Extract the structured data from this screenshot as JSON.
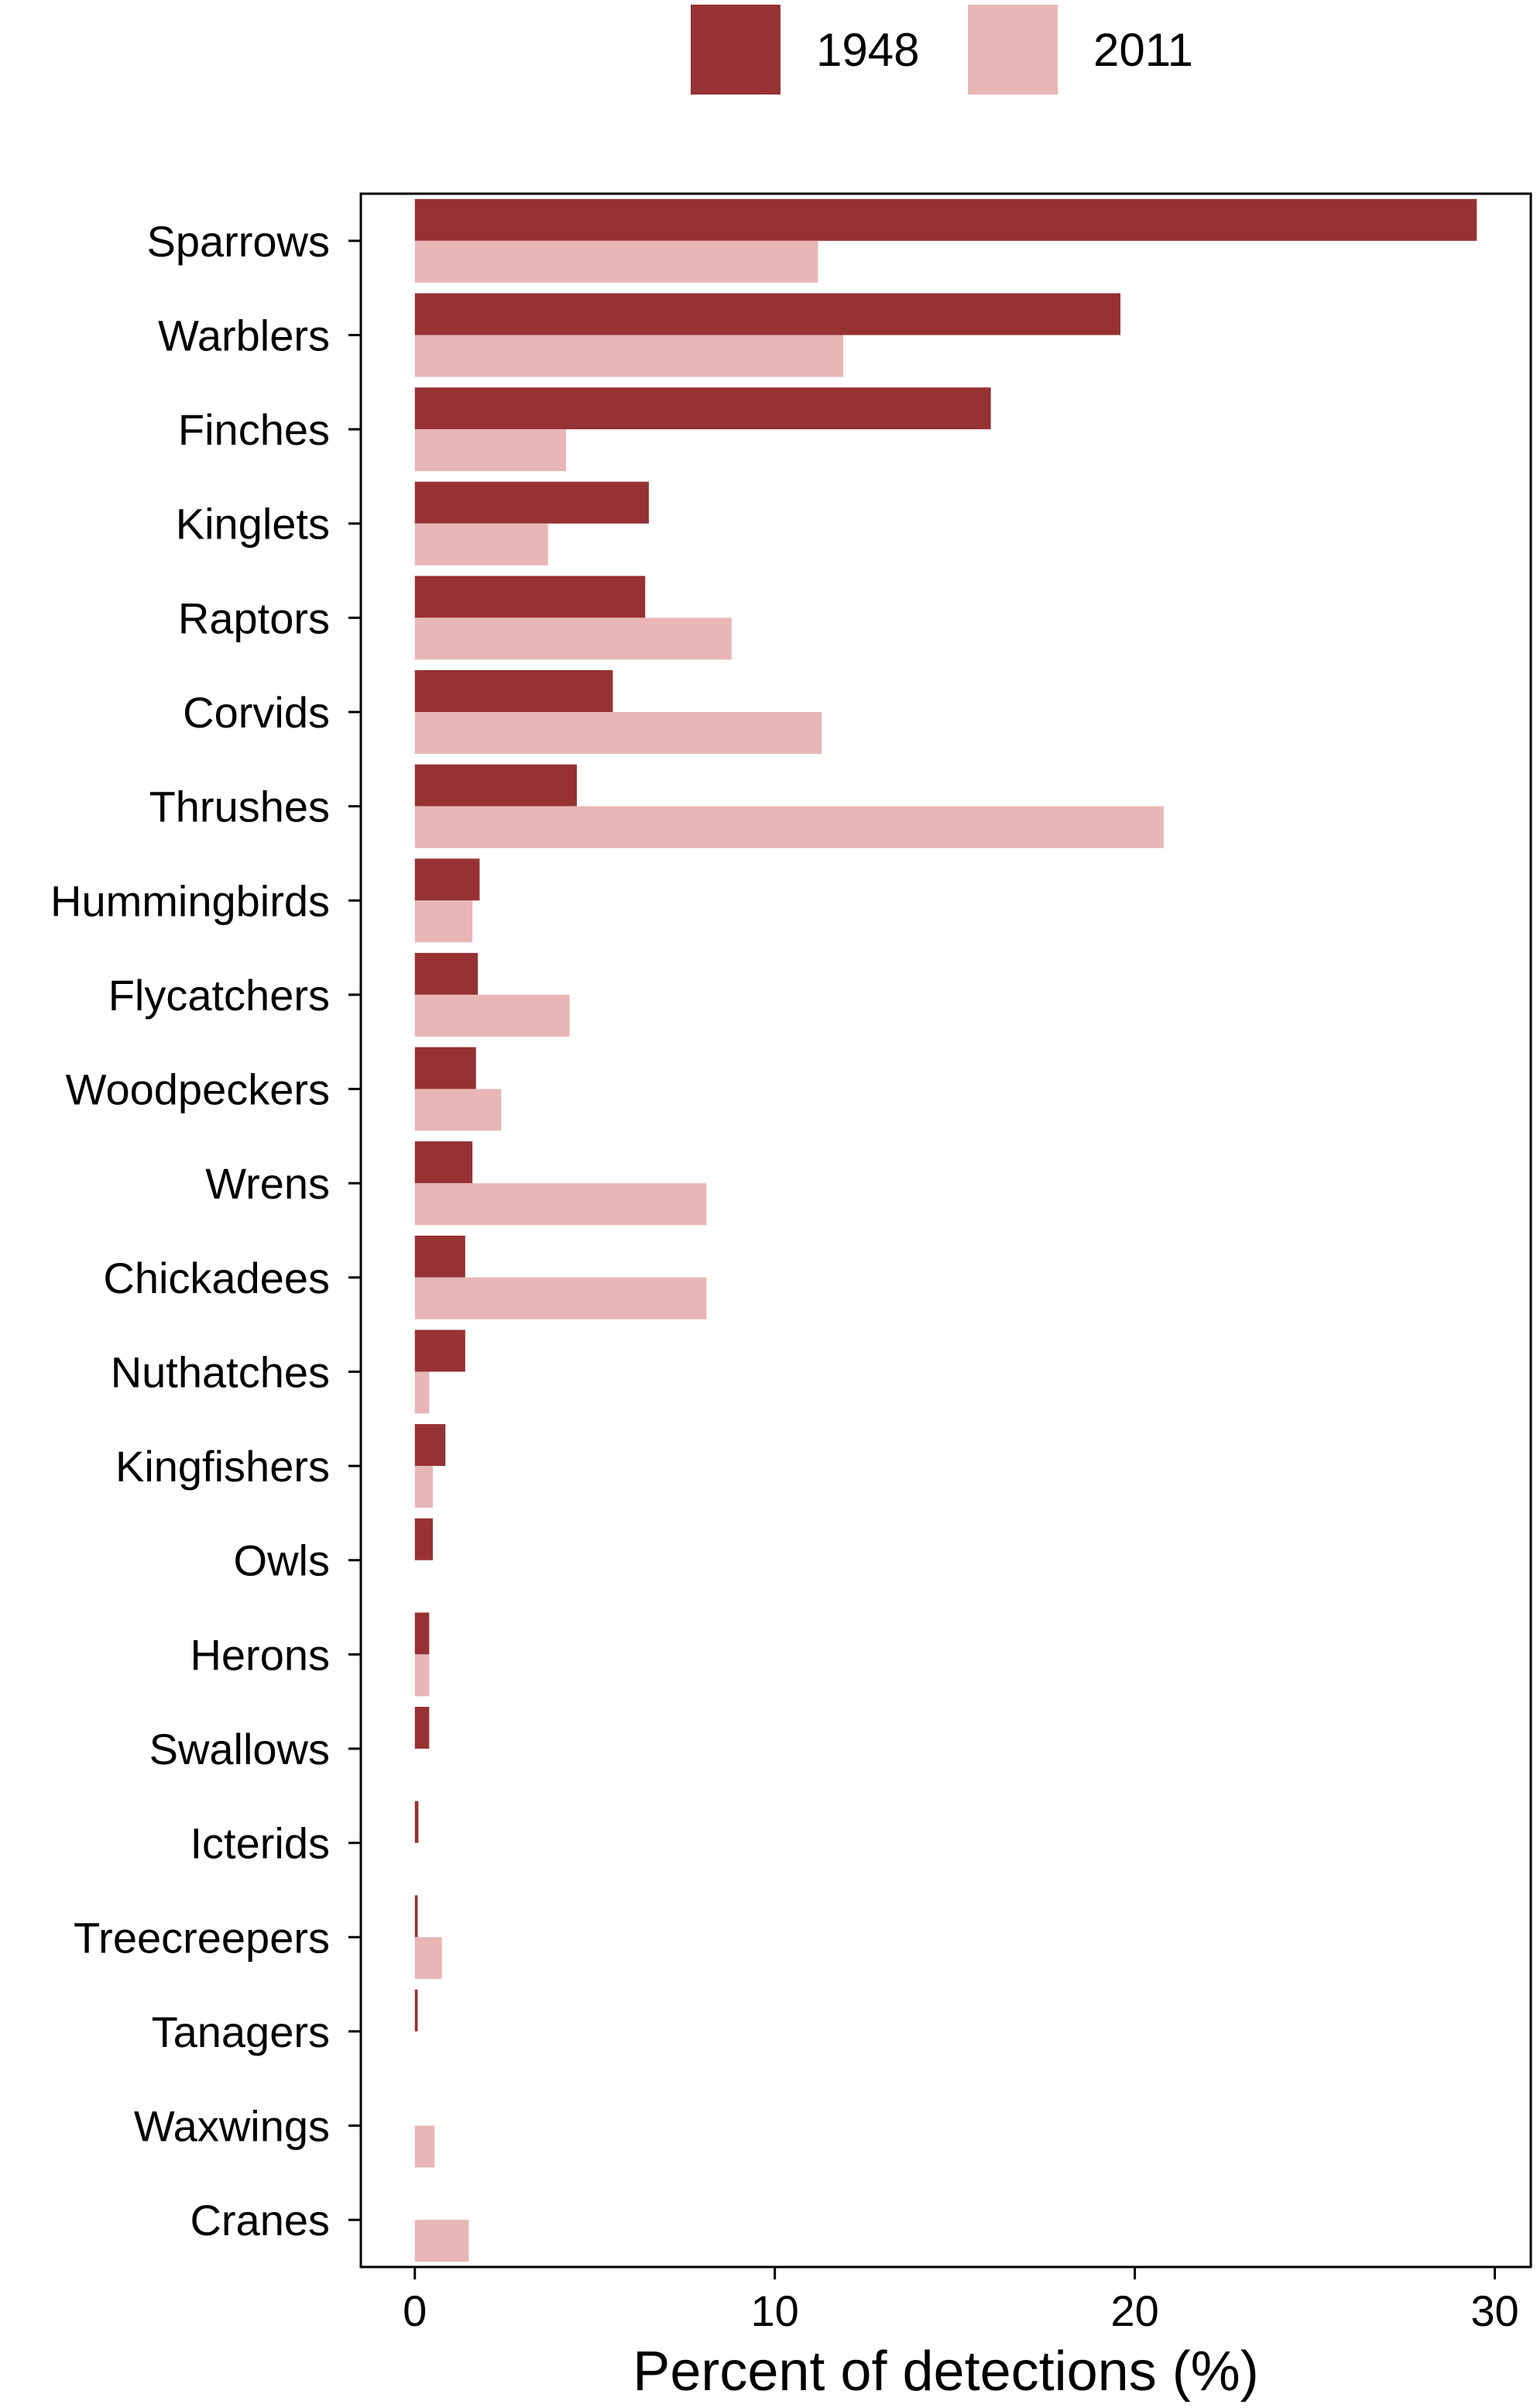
{
  "chart_data": {
    "type": "bar",
    "orientation": "horizontal",
    "xlabel": "Percent of detections (%)",
    "ylabel": "",
    "xlim": [
      -1.5,
      31
    ],
    "xticks": [
      0,
      10,
      20,
      30
    ],
    "grid": false,
    "legend_position": "top-center",
    "categories": [
      "Sparrows",
      "Warblers",
      "Finches",
      "Kinglets",
      "Raptors",
      "Corvids",
      "Thrushes",
      "Hummingbirds",
      "Flycatchers",
      "Woodpeckers",
      "Wrens",
      "Chickadees",
      "Nuthatches",
      "Kingfishers",
      "Owls",
      "Herons",
      "Swallows",
      "Icterids",
      "Treecreepers",
      "Tanagers",
      "Waxwings",
      "Cranes"
    ],
    "series": [
      {
        "name": "1948",
        "color": "#963234",
        "values": [
          29.5,
          19.6,
          16.0,
          6.5,
          6.4,
          5.5,
          4.5,
          1.8,
          1.75,
          1.7,
          1.6,
          1.4,
          1.4,
          0.85,
          0.5,
          0.4,
          0.4,
          0.1,
          0.08,
          0.08,
          0.0,
          0.0
        ]
      },
      {
        "name": "2011",
        "color": "#E8B6B6",
        "values": [
          11.2,
          11.9,
          4.2,
          3.7,
          8.8,
          11.3,
          20.8,
          1.6,
          4.3,
          2.4,
          8.1,
          8.1,
          0.4,
          0.5,
          0.0,
          0.4,
          0.0,
          0.0,
          0.75,
          0.0,
          0.55,
          1.5
        ]
      }
    ]
  }
}
